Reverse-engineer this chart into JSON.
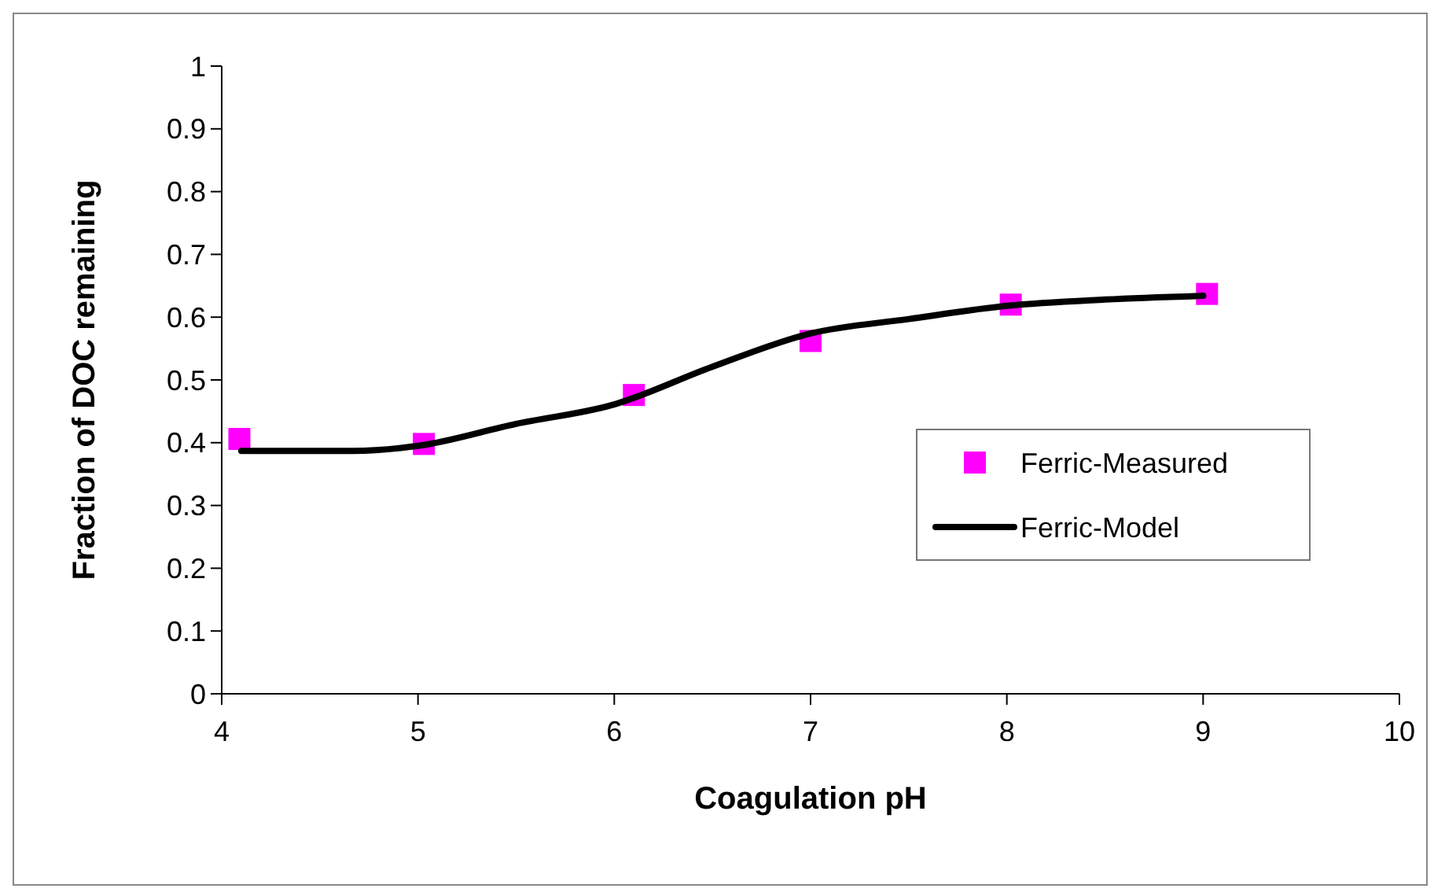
{
  "chart_data": {
    "type": "scatter",
    "xlabel": "Coagulation pH",
    "ylabel": "Fraction of DOC remaining",
    "xlim": [
      4,
      10
    ],
    "xticks": [
      4,
      5,
      6,
      7,
      8,
      9,
      10
    ],
    "ylim": [
      0,
      1
    ],
    "yticks": [
      0,
      0.1,
      0.2,
      0.3,
      0.4,
      0.5,
      0.6,
      0.7,
      0.8,
      0.9,
      1
    ],
    "grid": false,
    "legend": "right",
    "series": [
      {
        "name": "Ferric-Measured",
        "marker": "square",
        "color": "#ff00ff",
        "x": [
          4.09,
          5.03,
          6.1,
          7.0,
          8.02,
          9.02
        ],
        "values": [
          0.406,
          0.398,
          0.476,
          0.562,
          0.62,
          0.637
        ]
      },
      {
        "name": "Ferric-Model",
        "type": "line",
        "marker": "none",
        "line_style": "solid",
        "color": "#000000",
        "x": [
          4.1,
          4.4,
          4.67,
          5,
          5.5,
          6,
          6.5,
          7,
          7.5,
          8,
          8.5,
          9
        ],
        "values": [
          0.387,
          0.387,
          0.387,
          0.395,
          0.43,
          0.461,
          0.521,
          0.574,
          0.597,
          0.618,
          0.628,
          0.634
        ]
      }
    ]
  }
}
